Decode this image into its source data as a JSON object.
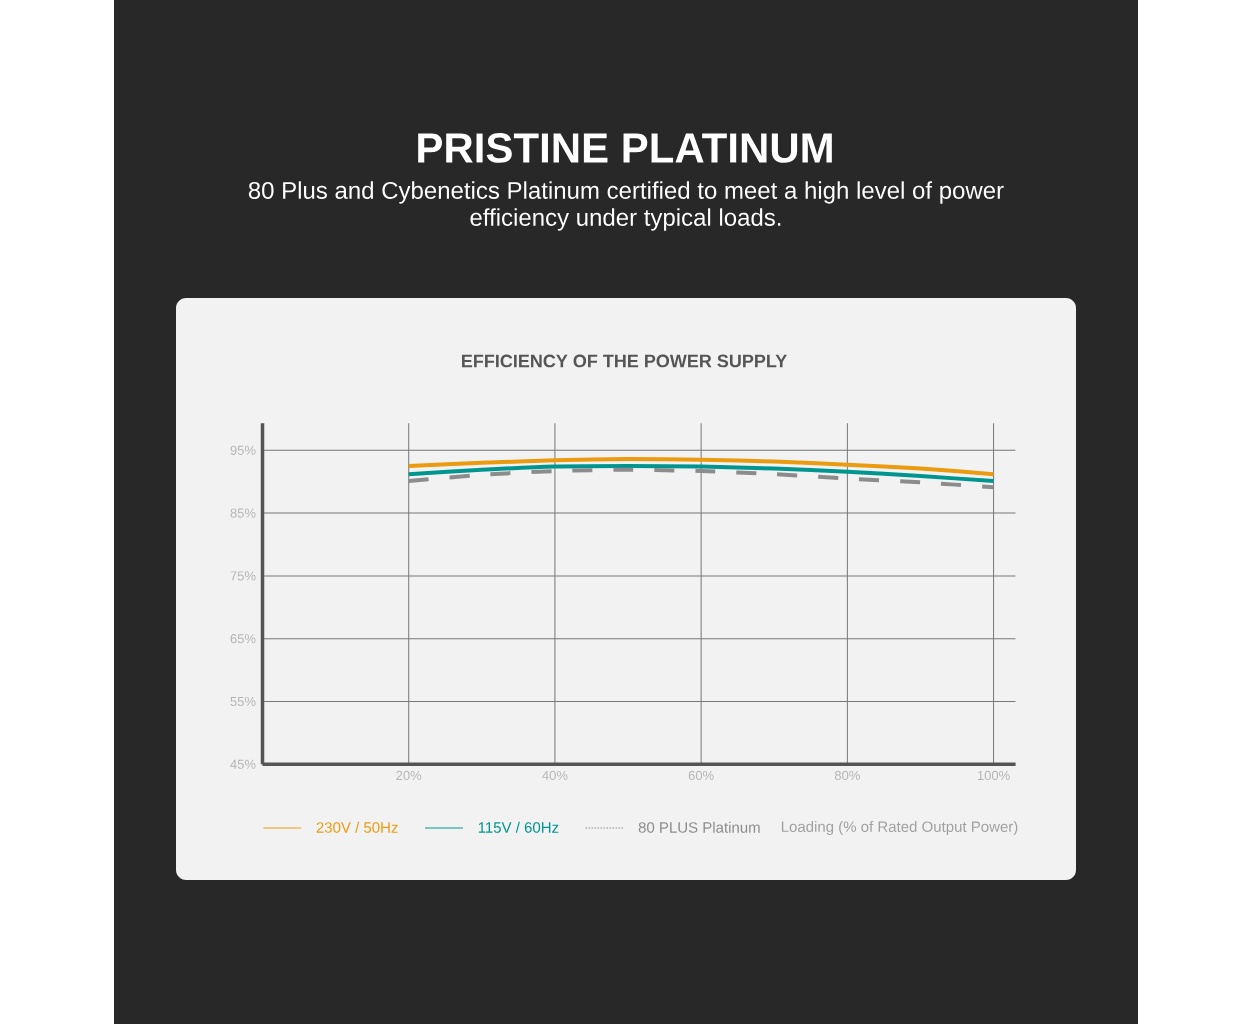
{
  "chart_data": {
    "type": "line",
    "title": "EFFICIENCY OF THE POWER SUPPLY",
    "annotations": [
      "PRISTINE PLATINUM",
      "80 Plus and Cybenetics Platinum certified to meet a high level of power efficiency under typical loads."
    ],
    "xlabel": "Loading (% of Rated Output Power)",
    "x": [
      20,
      30,
      40,
      50,
      60,
      70,
      80,
      90,
      100
    ],
    "series": [
      {
        "name": "230V / 50Hz",
        "color": "#eb9b10",
        "line_style": "solid",
        "values": [
          92.5,
          93.0,
          93.4,
          93.6,
          93.5,
          93.2,
          92.7,
          92.1,
          91.2
        ]
      },
      {
        "name": "115V / 60Hz",
        "color": "#00958f",
        "line_style": "solid",
        "values": [
          91.2,
          91.9,
          92.4,
          92.5,
          92.4,
          92.1,
          91.6,
          90.9,
          90.1
        ]
      },
      {
        "name": "80 PLUS Platinum",
        "color": "#8c8c8c",
        "line_style": "dashed",
        "values": [
          90.1,
          91.1,
          91.7,
          91.9,
          91.7,
          91.2,
          90.5,
          89.9,
          89.1
        ]
      }
    ],
    "xlim": [
      0,
      103
    ],
    "ylim": [
      45,
      99.3
    ],
    "xticks": [
      {
        "value": 20,
        "label": "20%"
      },
      {
        "value": 40,
        "label": "40%"
      },
      {
        "value": 60,
        "label": "60%"
      },
      {
        "value": 80,
        "label": "80%"
      },
      {
        "value": 100,
        "label": "100%"
      }
    ],
    "yticks": [
      {
        "value": 45,
        "label": "45%"
      },
      {
        "value": 55,
        "label": "55%"
      },
      {
        "value": 65,
        "label": "65%"
      },
      {
        "value": 75,
        "label": "75%"
      },
      {
        "value": 85,
        "label": "85%"
      },
      {
        "value": 95,
        "label": "95%"
      }
    ],
    "grid": true,
    "legend": "bottom"
  }
}
